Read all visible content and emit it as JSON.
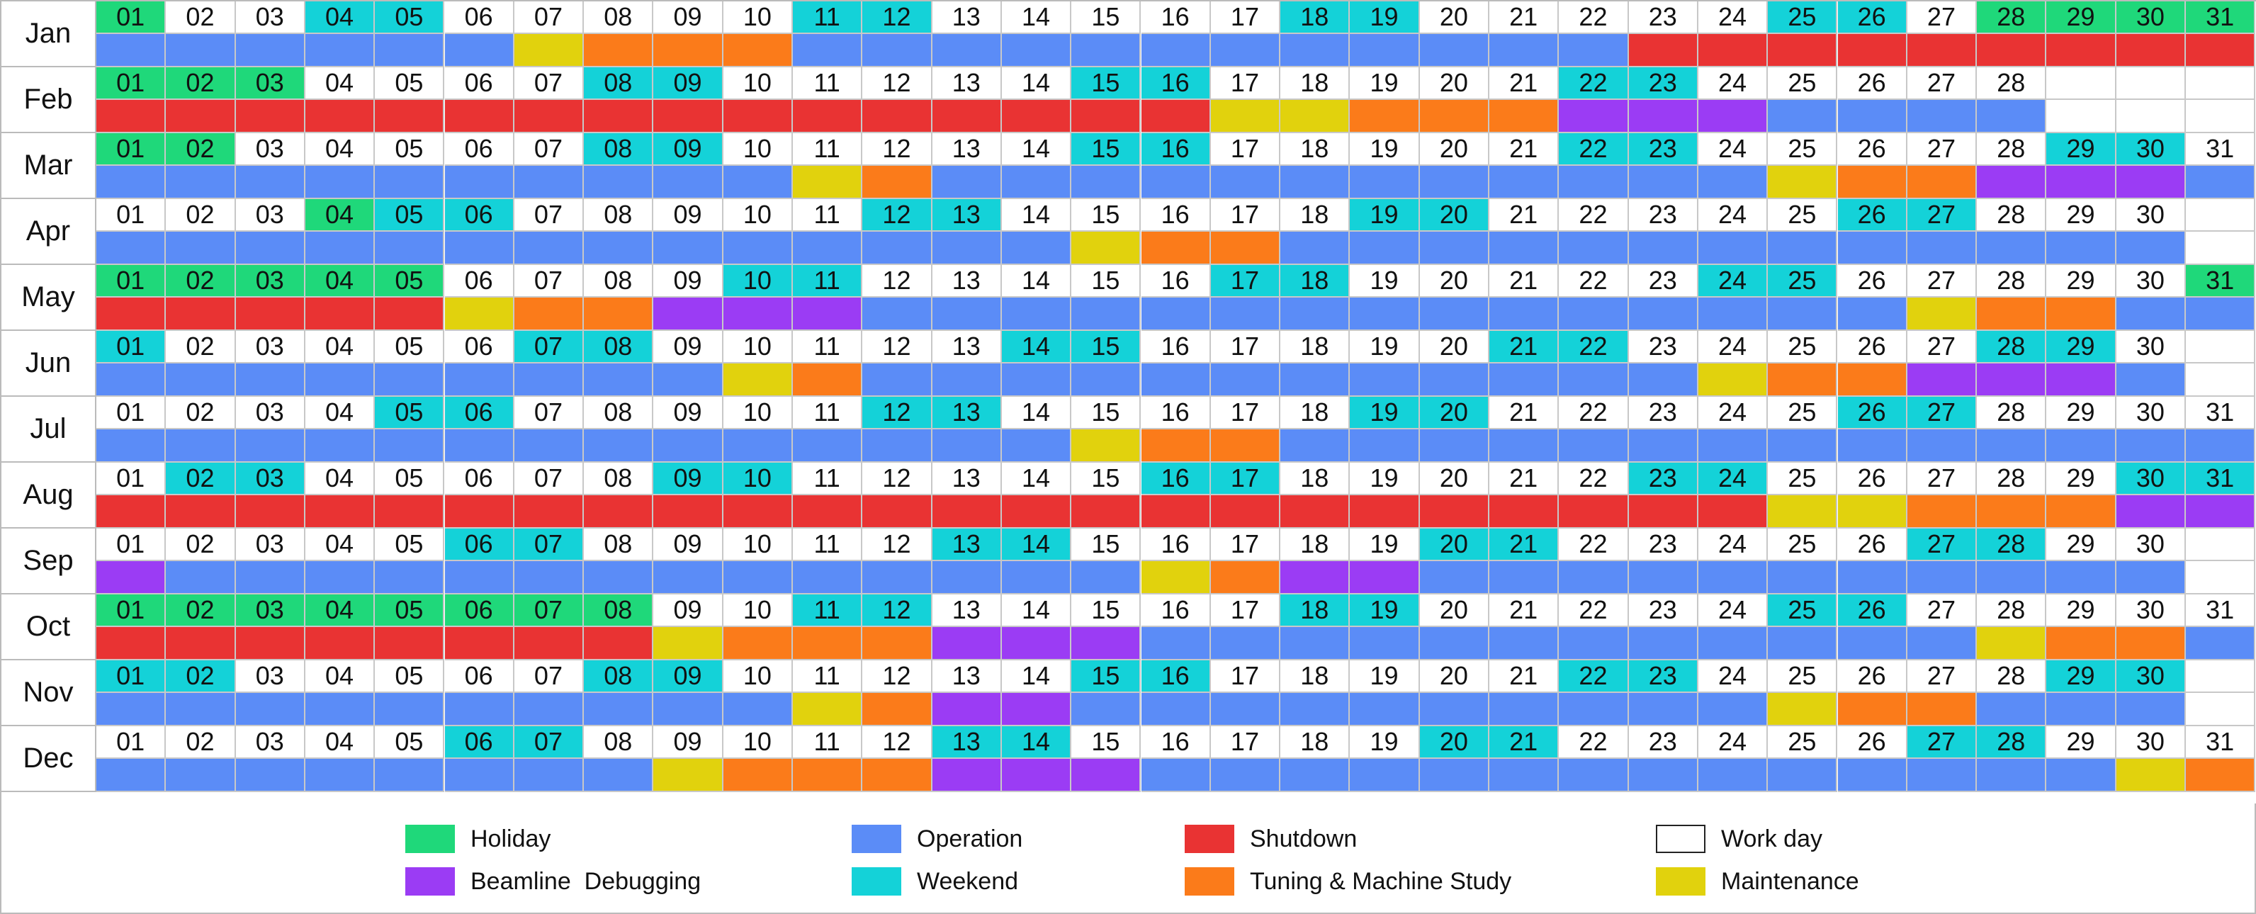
{
  "colors": {
    "holiday": "#1fd87a",
    "weekend": "#14d2d8",
    "workday": "#ffffff",
    "operation": "#5b8cf7",
    "shutdown": "#e93333",
    "tuning": "#fb7b1a",
    "maintenance": "#e1d20d",
    "debugging": "#9b3cf4"
  },
  "legend": [
    {
      "key": "holiday",
      "label": "Holiday"
    },
    {
      "key": "operation",
      "label": "Operation"
    },
    {
      "key": "shutdown",
      "label": "Shutdown"
    },
    {
      "key": "workday",
      "label": "Work day"
    },
    {
      "key": "debugging",
      "label": "Beamline  Debugging"
    },
    {
      "key": "weekend",
      "label": "Weekend"
    },
    {
      "key": "tuning",
      "label": "Tuning & Machine Study"
    },
    {
      "key": "maintenance",
      "label": "Maintenance"
    }
  ],
  "months": [
    {
      "label": "Jan",
      "days": 31,
      "holidays": [
        1,
        28,
        29,
        30,
        31
      ],
      "weekends": [
        4,
        5,
        11,
        12,
        18,
        19,
        25,
        26
      ],
      "schedule": [
        [
          "operation",
          1,
          6
        ],
        [
          "maintenance",
          7,
          7
        ],
        [
          "tuning",
          8,
          10
        ],
        [
          "operation",
          11,
          22
        ],
        [
          "shutdown",
          23,
          31
        ]
      ]
    },
    {
      "label": "Feb",
      "days": 28,
      "holidays": [
        1,
        2,
        3
      ],
      "weekends": [
        8,
        9,
        15,
        16,
        22,
        23
      ],
      "schedule": [
        [
          "shutdown",
          1,
          16
        ],
        [
          "maintenance",
          17,
          18
        ],
        [
          "tuning",
          19,
          21
        ],
        [
          "debugging",
          22,
          24
        ],
        [
          "operation",
          25,
          28
        ]
      ]
    },
    {
      "label": "Mar",
      "days": 31,
      "holidays": [
        1,
        2
      ],
      "weekends": [
        8,
        9,
        15,
        16,
        22,
        23,
        29,
        30
      ],
      "schedule": [
        [
          "operation",
          1,
          10
        ],
        [
          "maintenance",
          11,
          11
        ],
        [
          "tuning",
          12,
          12
        ],
        [
          "operation",
          13,
          24
        ],
        [
          "maintenance",
          25,
          25
        ],
        [
          "tuning",
          26,
          27
        ],
        [
          "debugging",
          28,
          30
        ],
        [
          "operation",
          31,
          31
        ]
      ]
    },
    {
      "label": "Apr",
      "days": 30,
      "holidays": [
        4
      ],
      "weekends": [
        5,
        6,
        12,
        13,
        19,
        20,
        26,
        27
      ],
      "schedule": [
        [
          "operation",
          1,
          14
        ],
        [
          "maintenance",
          15,
          15
        ],
        [
          "tuning",
          16,
          17
        ],
        [
          "operation",
          18,
          30
        ]
      ]
    },
    {
      "label": "May",
      "days": 31,
      "holidays": [
        1,
        2,
        3,
        4,
        5,
        31
      ],
      "weekends": [
        10,
        11,
        17,
        18,
        24,
        25
      ],
      "schedule": [
        [
          "shutdown",
          1,
          5
        ],
        [
          "maintenance",
          6,
          6
        ],
        [
          "tuning",
          7,
          8
        ],
        [
          "debugging",
          9,
          11
        ],
        [
          "operation",
          12,
          26
        ],
        [
          "maintenance",
          27,
          27
        ],
        [
          "tuning",
          28,
          29
        ],
        [
          "operation",
          30,
          31
        ]
      ]
    },
    {
      "label": "Jun",
      "days": 30,
      "holidays": [],
      "weekends": [
        1,
        7,
        8,
        14,
        15,
        21,
        22,
        28,
        29
      ],
      "schedule": [
        [
          "operation",
          1,
          9
        ],
        [
          "maintenance",
          10,
          10
        ],
        [
          "tuning",
          11,
          11
        ],
        [
          "operation",
          12,
          23
        ],
        [
          "maintenance",
          24,
          24
        ],
        [
          "tuning",
          25,
          26
        ],
        [
          "debugging",
          27,
          29
        ],
        [
          "operation",
          30,
          30
        ]
      ]
    },
    {
      "label": "Jul",
      "days": 31,
      "holidays": [],
      "weekends": [
        5,
        6,
        12,
        13,
        19,
        20,
        26,
        27
      ],
      "schedule": [
        [
          "operation",
          1,
          14
        ],
        [
          "maintenance",
          15,
          15
        ],
        [
          "tuning",
          16,
          17
        ],
        [
          "operation",
          18,
          31
        ]
      ]
    },
    {
      "label": "Aug",
      "days": 31,
      "holidays": [],
      "weekends": [
        2,
        3,
        9,
        10,
        16,
        17,
        23,
        24,
        30,
        31
      ],
      "schedule": [
        [
          "shutdown",
          1,
          24
        ],
        [
          "maintenance",
          25,
          26
        ],
        [
          "tuning",
          27,
          29
        ],
        [
          "debugging",
          30,
          31
        ]
      ]
    },
    {
      "label": "Sep",
      "days": 30,
      "holidays": [],
      "weekends": [
        6,
        7,
        13,
        14,
        20,
        21,
        27,
        28
      ],
      "schedule": [
        [
          "debugging",
          1,
          1
        ],
        [
          "operation",
          2,
          15
        ],
        [
          "maintenance",
          16,
          16
        ],
        [
          "tuning",
          17,
          17
        ],
        [
          "debugging",
          18,
          19
        ],
        [
          "operation",
          20,
          30
        ]
      ]
    },
    {
      "label": "Oct",
      "days": 31,
      "holidays": [
        1,
        2,
        3,
        4,
        5,
        6,
        7,
        8
      ],
      "weekends": [
        11,
        12,
        18,
        19,
        25,
        26
      ],
      "schedule": [
        [
          "shutdown",
          1,
          8
        ],
        [
          "maintenance",
          9,
          9
        ],
        [
          "tuning",
          10,
          12
        ],
        [
          "debugging",
          13,
          15
        ],
        [
          "operation",
          16,
          27
        ],
        [
          "maintenance",
          28,
          28
        ],
        [
          "tuning",
          29,
          30
        ],
        [
          "operation",
          31,
          31
        ]
      ]
    },
    {
      "label": "Nov",
      "days": 30,
      "holidays": [],
      "weekends": [
        1,
        2,
        8,
        9,
        15,
        16,
        22,
        23,
        29,
        30
      ],
      "schedule": [
        [
          "operation",
          1,
          10
        ],
        [
          "maintenance",
          11,
          11
        ],
        [
          "tuning",
          12,
          12
        ],
        [
          "debugging",
          13,
          14
        ],
        [
          "operation",
          15,
          24
        ],
        [
          "maintenance",
          25,
          25
        ],
        [
          "tuning",
          26,
          27
        ],
        [
          "operation",
          28,
          30
        ]
      ]
    },
    {
      "label": "Dec",
      "days": 31,
      "holidays": [],
      "weekends": [
        6,
        7,
        13,
        14,
        20,
        21,
        27,
        28
      ],
      "schedule": [
        [
          "operation",
          1,
          8
        ],
        [
          "maintenance",
          9,
          9
        ],
        [
          "tuning",
          10,
          12
        ],
        [
          "debugging",
          13,
          15
        ],
        [
          "operation",
          16,
          29
        ],
        [
          "maintenance",
          30,
          30
        ],
        [
          "tuning",
          31,
          31
        ]
      ]
    }
  ]
}
